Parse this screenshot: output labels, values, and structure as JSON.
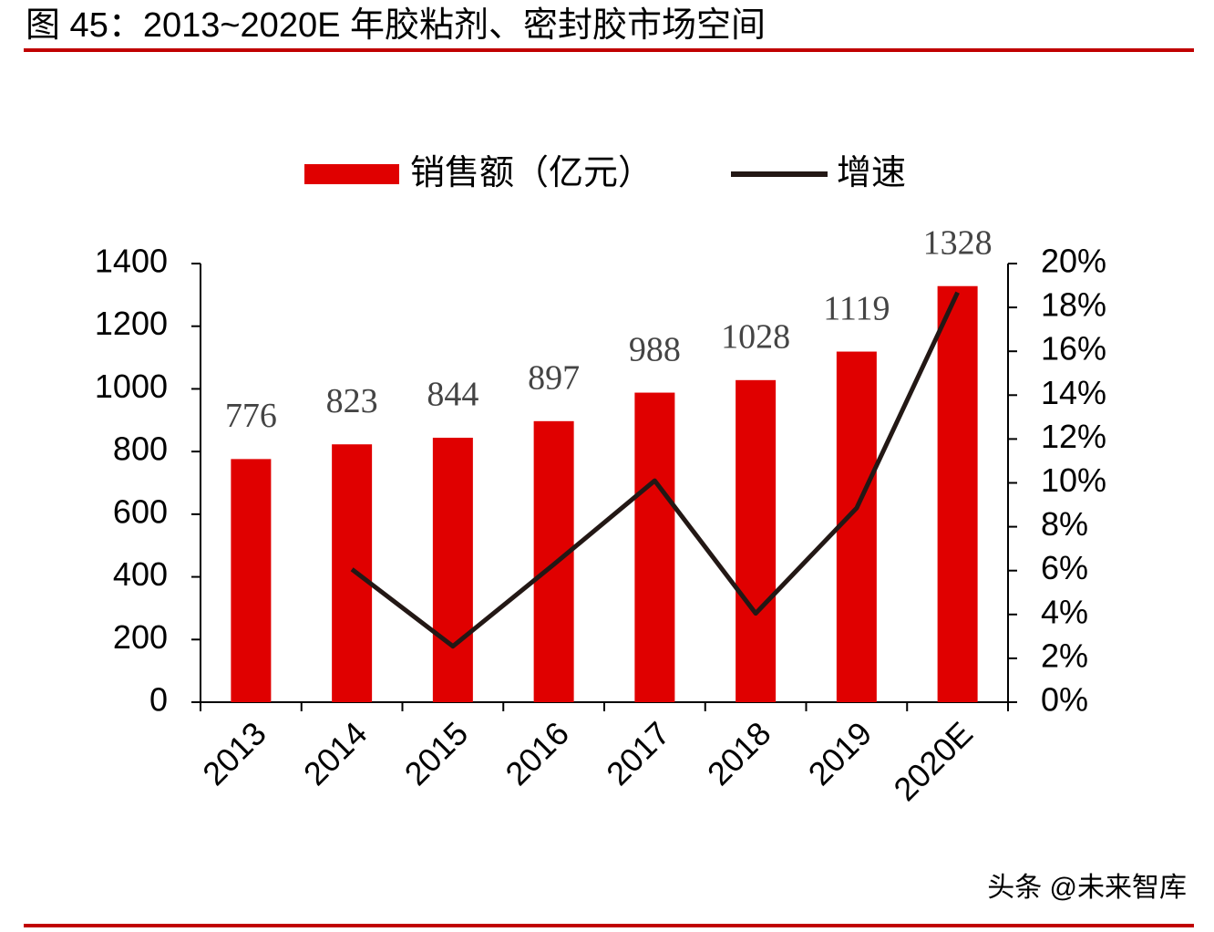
{
  "chart_data": {
    "type": "bar-line",
    "title": "图 45：2013~2020E 年胶粘剂、密封胶市场空间",
    "source": "头条 @未来智库",
    "categories": [
      "2013",
      "2014",
      "2015",
      "2016",
      "2017",
      "2018",
      "2019",
      "2020E"
    ],
    "series": [
      {
        "name": "销售额（亿元）",
        "type": "bar",
        "color": "#e00000",
        "values": [
          776,
          823,
          844,
          897,
          988,
          1028,
          1119,
          1328
        ]
      },
      {
        "name": "增速",
        "type": "line",
        "axis": "y2",
        "color": "#231815",
        "values": [
          null,
          6.06,
          2.55,
          6.28,
          10.1,
          4.05,
          8.85,
          18.68
        ]
      }
    ],
    "ylim": [
      0,
      1400
    ],
    "yticks": [
      0,
      200,
      400,
      600,
      800,
      1000,
      1200,
      1400
    ],
    "y2lim": [
      0,
      20
    ],
    "y2ticks": [
      {
        "value": 0,
        "label": "0%"
      },
      {
        "value": 2,
        "label": "2%"
      },
      {
        "value": 4,
        "label": "4%"
      },
      {
        "value": 6,
        "label": "6%"
      },
      {
        "value": 8,
        "label": "8%"
      },
      {
        "value": 10,
        "label": "10%"
      },
      {
        "value": 12,
        "label": "12%"
      },
      {
        "value": 14,
        "label": "14%"
      },
      {
        "value": 16,
        "label": "16%"
      },
      {
        "value": 18,
        "label": "18%"
      },
      {
        "value": 20,
        "label": "20%"
      }
    ],
    "legend": "top"
  }
}
